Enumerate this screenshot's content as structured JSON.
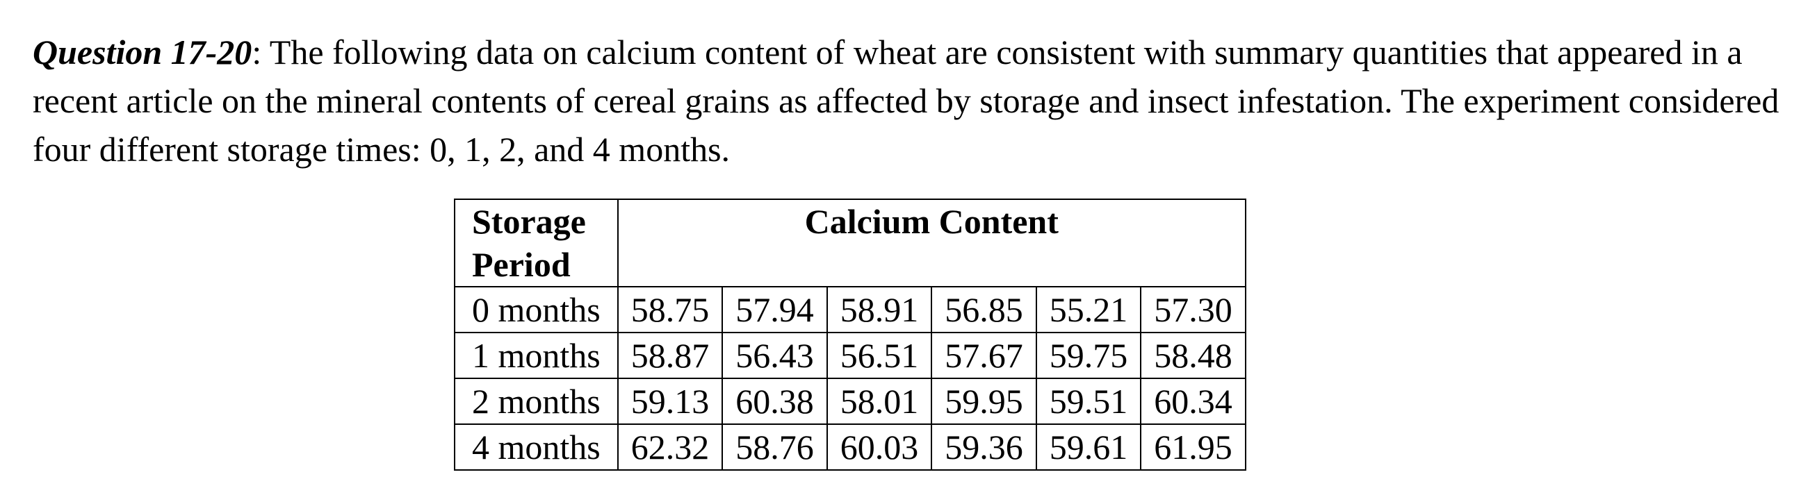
{
  "intro": {
    "question_label": "Question 17-20",
    "text": ": The following data on calcium content of wheat are consistent with summary quantities that appeared in a recent article on the mineral contents of cereal grains as affected by storage and insect infestation. The experiment considered four different storage times: 0, 1, 2, and 4 months."
  },
  "table": {
    "header_storage_line1": "Storage",
    "header_storage_line2": "Period",
    "header_content": "Calcium Content",
    "rows": [
      {
        "period": "0 months",
        "values": [
          "58.75",
          "57.94",
          "58.91",
          "56.85",
          "55.21",
          "57.30"
        ]
      },
      {
        "period": "1 months",
        "values": [
          "58.87",
          "56.43",
          "56.51",
          "57.67",
          "59.75",
          "58.48"
        ]
      },
      {
        "period": "2 months",
        "values": [
          "59.13",
          "60.38",
          "58.01",
          "59.95",
          "59.51",
          "60.34"
        ]
      },
      {
        "period": "4 months",
        "values": [
          "62.32",
          "58.76",
          "60.03",
          "59.36",
          "59.61",
          "61.95"
        ]
      }
    ]
  }
}
